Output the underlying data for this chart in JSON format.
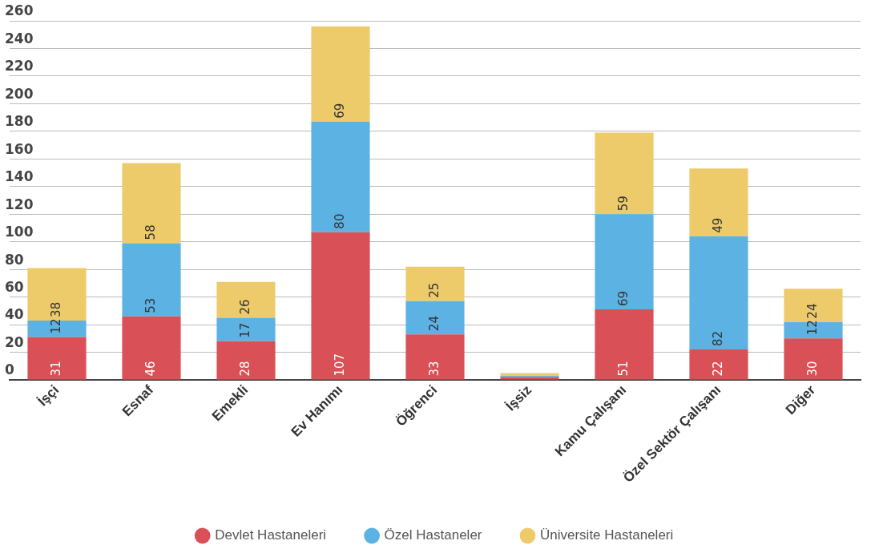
{
  "chart_data": {
    "type": "bar",
    "stacked": true,
    "categories": [
      "İşçi",
      "Esnaf",
      "Emekli",
      "Ev Hanımı",
      "Öğrenci",
      "İşsiz",
      "Kamu Çalışanı",
      "Özel Sektör Çalışanı",
      "Diğer"
    ],
    "series": [
      {
        "name": "Devlet Hastaneleri",
        "color": "#d95156",
        "values": [
          31,
          46,
          28,
          107,
          33,
          2,
          51,
          22,
          30
        ],
        "value_labels": [
          "31",
          "46",
          "28",
          "107",
          "33",
          null,
          "51",
          "22",
          "30"
        ]
      },
      {
        "name": "Özel Hastaneler",
        "color": "#5cb3e3",
        "values": [
          12,
          53,
          17,
          80,
          24,
          1,
          69,
          82,
          12
        ],
        "value_labels": [
          "12",
          "53",
          "17",
          "80",
          "24",
          null,
          "69",
          "82",
          "12"
        ]
      },
      {
        "name": "Üniversite Hastaneleri",
        "color": "#eecb6a",
        "values": [
          38,
          58,
          26,
          69,
          25,
          2,
          59,
          49,
          24
        ],
        "value_labels": [
          "38",
          "58",
          "26",
          "69",
          "25",
          null,
          "59",
          "49",
          "24"
        ]
      }
    ],
    "ylim": [
      0,
      260
    ],
    "yticks": [
      0,
      20,
      40,
      60,
      80,
      100,
      120,
      140,
      160,
      180,
      200,
      220,
      240,
      260
    ],
    "grid": "y",
    "legend": "bottom"
  }
}
